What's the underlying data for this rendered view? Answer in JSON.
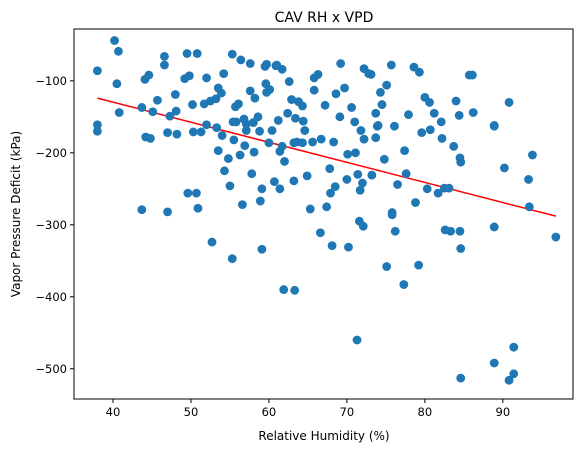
{
  "chart_data": {
    "type": "scatter",
    "title": "CAV RH x VPD",
    "xlabel": "Relative Humidity (%)",
    "ylabel": "Vapor Pressure Deficit (kPa)",
    "xlim": [
      35,
      99
    ],
    "ylim": [
      -542,
      -28
    ],
    "xticks": [
      40,
      50,
      60,
      70,
      80,
      90
    ],
    "yticks": [
      -500,
      -400,
      -300,
      -200,
      -100
    ],
    "grid": false,
    "legend": "none",
    "point_color": "#1f77b4",
    "line_color": "#ff0000",
    "regression_line": {
      "x": [
        38,
        96.8
      ],
      "y": [
        -124,
        -288
      ]
    },
    "points": [
      [
        38,
        -86
      ],
      [
        38,
        -161
      ],
      [
        38,
        -170
      ],
      [
        40.2,
        -44
      ],
      [
        40.5,
        -104
      ],
      [
        40.7,
        -59
      ],
      [
        40.8,
        -144
      ],
      [
        43.7,
        -137
      ],
      [
        43.7,
        -279
      ],
      [
        44.1,
        -98
      ],
      [
        44.2,
        -178
      ],
      [
        44.6,
        -92
      ],
      [
        44.8,
        -180
      ],
      [
        45.1,
        -143
      ],
      [
        45.7,
        -127
      ],
      [
        46.6,
        -66
      ],
      [
        46.6,
        -78
      ],
      [
        47,
        -172
      ],
      [
        47,
        -282
      ],
      [
        47.3,
        -149
      ],
      [
        48,
        -119
      ],
      [
        48.1,
        -142
      ],
      [
        48.2,
        -174
      ],
      [
        49.2,
        -97
      ],
      [
        49.5,
        -62
      ],
      [
        49.6,
        -256
      ],
      [
        49.8,
        -93
      ],
      [
        50.2,
        -133
      ],
      [
        50.3,
        -171
      ],
      [
        50.7,
        -256
      ],
      [
        50.8,
        -62
      ],
      [
        50.9,
        -277
      ],
      [
        51.3,
        -171
      ],
      [
        51.7,
        -132
      ],
      [
        52,
        -161
      ],
      [
        52,
        -96
      ],
      [
        52.5,
        -128
      ],
      [
        52.7,
        -324
      ],
      [
        53.2,
        -125
      ],
      [
        53.3,
        -165
      ],
      [
        53.5,
        -110
      ],
      [
        53.5,
        -197
      ],
      [
        53.9,
        -117
      ],
      [
        54,
        -176
      ],
      [
        54.2,
        -90
      ],
      [
        54.3,
        -225
      ],
      [
        54.8,
        -208
      ],
      [
        55,
        -246
      ],
      [
        55.3,
        -63
      ],
      [
        55.3,
        -347
      ],
      [
        55.4,
        -157
      ],
      [
        55.5,
        -182
      ],
      [
        55.7,
        -136
      ],
      [
        55.8,
        -157
      ],
      [
        56.1,
        -132
      ],
      [
        56.3,
        -203
      ],
      [
        56.4,
        -71
      ],
      [
        56.6,
        -272
      ],
      [
        56.8,
        -153
      ],
      [
        56.9,
        -190
      ],
      [
        57.1,
        -169
      ],
      [
        57.1,
        -160
      ],
      [
        57.6,
        -76
      ],
      [
        57.6,
        -114
      ],
      [
        57.8,
        -229
      ],
      [
        58,
        -158
      ],
      [
        58.1,
        -199
      ],
      [
        58.2,
        -124
      ],
      [
        58.6,
        -150
      ],
      [
        58.8,
        -170
      ],
      [
        58.9,
        -267
      ],
      [
        59.1,
        -250
      ],
      [
        59.1,
        -334
      ],
      [
        59.5,
        -80
      ],
      [
        59.6,
        -104
      ],
      [
        59.7,
        -77
      ],
      [
        59.7,
        -116
      ],
      [
        60,
        -186
      ],
      [
        60.1,
        -112
      ],
      [
        60.4,
        -169
      ],
      [
        60.7,
        -240
      ],
      [
        60.9,
        -79
      ],
      [
        61,
        -78
      ],
      [
        61.2,
        -155
      ],
      [
        61.4,
        -250
      ],
      [
        61.4,
        -198
      ],
      [
        61.7,
        -191
      ],
      [
        61.7,
        -84
      ],
      [
        61.9,
        -390
      ],
      [
        62,
        -212
      ],
      [
        62.4,
        -145
      ],
      [
        62.6,
        -101
      ],
      [
        62.9,
        -126
      ],
      [
        63.2,
        -239
      ],
      [
        63.2,
        -186
      ],
      [
        63.3,
        -391
      ],
      [
        63.4,
        -152
      ],
      [
        63.6,
        -185
      ],
      [
        63.8,
        -129
      ],
      [
        64.3,
        -135
      ],
      [
        64.3,
        -186
      ],
      [
        64.4,
        -156
      ],
      [
        64.6,
        -169
      ],
      [
        64.9,
        -232
      ],
      [
        65.3,
        -278
      ],
      [
        65.6,
        -185
      ],
      [
        65.8,
        -96
      ],
      [
        65.8,
        -113
      ],
      [
        66.3,
        -91
      ],
      [
        66.6,
        -311
      ],
      [
        66.7,
        -181
      ],
      [
        67.2,
        -134
      ],
      [
        67.4,
        -275
      ],
      [
        67.8,
        -222
      ],
      [
        67.9,
        -256
      ],
      [
        68.1,
        -329
      ],
      [
        68.3,
        -185
      ],
      [
        68.5,
        -247
      ],
      [
        68.6,
        -118
      ],
      [
        69.1,
        -150
      ],
      [
        69.2,
        -76
      ],
      [
        69.7,
        -110
      ],
      [
        70,
        -237
      ],
      [
        70.1,
        -202
      ],
      [
        70.2,
        -331
      ],
      [
        70.6,
        -137
      ],
      [
        71,
        -157
      ],
      [
        71.1,
        -200
      ],
      [
        71.3,
        -460
      ],
      [
        71.4,
        -230
      ],
      [
        71.6,
        -295
      ],
      [
        71.7,
        -252
      ],
      [
        71.8,
        -169
      ],
      [
        72,
        -242
      ],
      [
        72.1,
        -302
      ],
      [
        72.2,
        -83
      ],
      [
        72.2,
        -181
      ],
      [
        72.8,
        -90
      ],
      [
        73.1,
        -91
      ],
      [
        73.2,
        -231
      ],
      [
        73.7,
        -145
      ],
      [
        73.7,
        -179
      ],
      [
        73.9,
        -163
      ],
      [
        74,
        -162
      ],
      [
        74.3,
        -116
      ],
      [
        74.5,
        -133
      ],
      [
        74.8,
        -209
      ],
      [
        75.1,
        -106
      ],
      [
        75.1,
        -358
      ],
      [
        75.7,
        -78
      ],
      [
        75.8,
        -286
      ],
      [
        75.8,
        -283
      ],
      [
        76.1,
        -163
      ],
      [
        76.2,
        -309
      ],
      [
        76.5,
        -244
      ],
      [
        77.3,
        -383
      ],
      [
        77.4,
        -197
      ],
      [
        77.6,
        -229
      ],
      [
        77.9,
        -147
      ],
      [
        78.6,
        -81
      ],
      [
        78.8,
        -269
      ],
      [
        79.2,
        -356
      ],
      [
        79.3,
        -88
      ],
      [
        79.6,
        -172
      ],
      [
        80,
        -123
      ],
      [
        80.3,
        -250
      ],
      [
        80.6,
        -130
      ],
      [
        80.7,
        -168
      ],
      [
        81.2,
        -145
      ],
      [
        81.7,
        -256
      ],
      [
        82.1,
        -157
      ],
      [
        82.2,
        -180
      ],
      [
        82.5,
        -249
      ],
      [
        82.6,
        -307
      ],
      [
        83.1,
        -249
      ],
      [
        83.3,
        -309
      ],
      [
        83.7,
        -191
      ],
      [
        84,
        -128
      ],
      [
        84.4,
        -148
      ],
      [
        84.5,
        -207
      ],
      [
        84.5,
        -309
      ],
      [
        84.6,
        -213
      ],
      [
        84.6,
        -333
      ],
      [
        84.6,
        -513
      ],
      [
        85.7,
        -92
      ],
      [
        86.1,
        -92
      ],
      [
        86.2,
        -144
      ],
      [
        88.9,
        -163
      ],
      [
        88.9,
        -162
      ],
      [
        88.9,
        -303
      ],
      [
        88.9,
        -492
      ],
      [
        90.2,
        -221
      ],
      [
        90.8,
        -130
      ],
      [
        90.8,
        -516
      ],
      [
        91.4,
        -470
      ],
      [
        91.4,
        -507
      ],
      [
        93.3,
        -237
      ],
      [
        93.4,
        -275
      ],
      [
        93.8,
        -203
      ],
      [
        96.8,
        -317
      ]
    ]
  }
}
